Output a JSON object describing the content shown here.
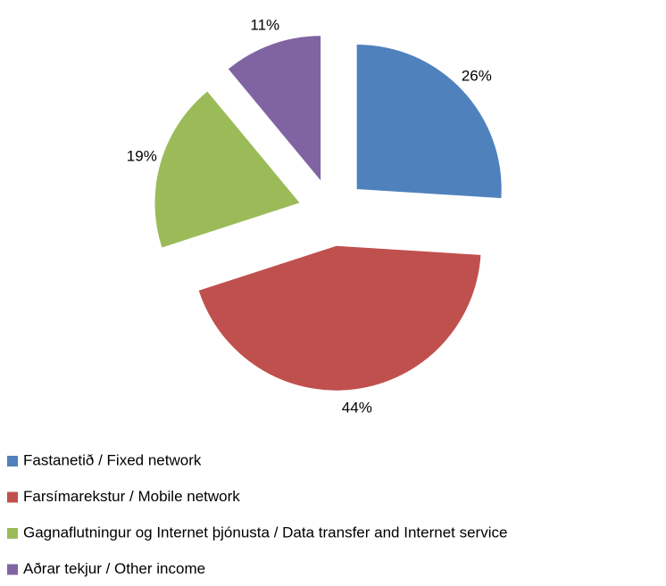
{
  "chart_data": {
    "type": "pie",
    "categories": [
      "Fastanetið / Fixed network",
      "Farsímarekstur / Mobile network",
      "Gagnaflutningur og Internet þjónusta / Data transfer and Internet service",
      "Aðrar tekjur / Other income"
    ],
    "values": [
      26,
      44,
      19,
      11
    ],
    "value_labels": [
      "26%",
      "44%",
      "19%",
      "11%"
    ],
    "colors": [
      "#4f81bd",
      "#c0504d",
      "#9bbb59",
      "#8064a2"
    ],
    "legend": "bottom"
  }
}
